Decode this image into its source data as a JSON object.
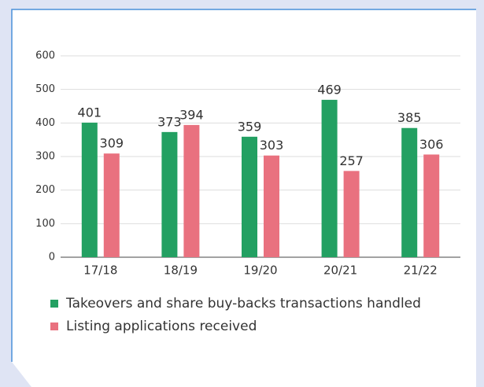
{
  "chart_data": {
    "type": "bar",
    "categories": [
      "17/18",
      "18/19",
      "19/20",
      "20/21",
      "21/22"
    ],
    "series": [
      {
        "name": "Takeovers and share buy-backs transactions handled",
        "color": "#23a062",
        "values": [
          401,
          373,
          359,
          469,
          385
        ]
      },
      {
        "name": "Listing applications received",
        "color": "#e9717f",
        "values": [
          309,
          394,
          303,
          257,
          306
        ]
      }
    ],
    "ylim": [
      0,
      600
    ],
    "yticks": [
      0,
      100,
      200,
      300,
      400,
      500,
      600
    ],
    "grid": true
  }
}
